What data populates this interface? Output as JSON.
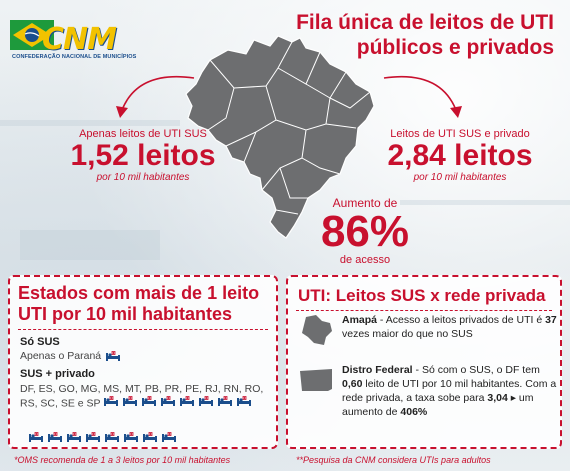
{
  "logo": {
    "name": "CNM",
    "subtitle": "CONFEDERAÇÃO NACIONAL DE MUNICÍPIOS"
  },
  "title": {
    "line1": "Fila única de leitos de UTI",
    "line2": "públicos e privados"
  },
  "sus_only": {
    "caption": "Apenas leitos de UTI SUS",
    "value": "1,52 leitos",
    "unit": "por 10 mil habitantes"
  },
  "sus_private": {
    "caption": "Leitos de UTI SUS e privado",
    "value": "2,84 leitos",
    "unit": "por 10 mil habitantes"
  },
  "growth": {
    "caption": "Aumento de",
    "value": "86%",
    "unit": "de acesso"
  },
  "left_panel": {
    "title_line1": "Estados com mais de 1 leito",
    "title_line2": "UTI por 10 mil habitantes",
    "sus_heading": "Só SUS",
    "sus_text": "Apenas o Paraná",
    "mixed_heading": "SUS + privado",
    "mixed_states": "DF, ES, GO, MG, MS, MT, PB, PR, PE, RJ, RN, RO, RS, SC, SE e SP"
  },
  "right_panel": {
    "title": "UTI: Leitos SUS x rede privada",
    "amapa_name": "Amapá",
    "amapa_text": " - Acesso a leitos privados de UTI é ",
    "amapa_value": "37",
    "amapa_tail": " vezes maior do que no SUS",
    "df_name": "Distro Federal",
    "df_text": " - Só com o SUS, o DF tem ",
    "df_value1": "0,60",
    "df_mid": " leito de UTI por 10 mil habitantes. Com a rede privada, a taxa sobe para ",
    "df_value2": "3,04",
    "df_arrow": "▸",
    "df_tail1": " um aumento de ",
    "df_value3": "406%"
  },
  "footnotes": {
    "left": "*OMS recomenda de 1 a 3 leitos por 10 mil habitantes",
    "right": "**Pesquisa da CNM considera UTIs para adultos"
  },
  "colors": {
    "accent": "#c8102e",
    "map": "#6d6e70",
    "blue": "#1b4e8c",
    "yellow": "#f2c200"
  },
  "icons": {
    "bed": "hospital-bed-icon",
    "map": "brazil-map",
    "amapa": "amapa-state-shape",
    "df": "df-state-shape"
  }
}
